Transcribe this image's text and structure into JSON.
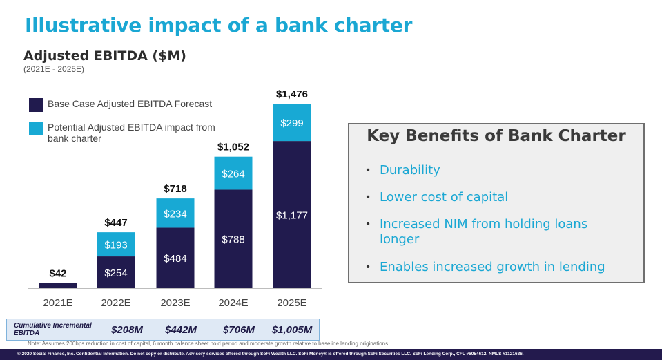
{
  "page": {
    "title": "Illustrative impact of a bank charter",
    "subtitle": "Adjusted EBITDA ($M)",
    "subsubtitle": "(2021E - 2025E)"
  },
  "colors": {
    "base": "#211b4e",
    "impact": "#18a9d4"
  },
  "chart_data": {
    "type": "bar",
    "stacked": true,
    "title": "Adjusted EBITDA ($M)",
    "categories": [
      "2021E",
      "2022E",
      "2023E",
      "2024E",
      "2025E"
    ],
    "series": [
      {
        "name": "Base Case Adjusted EBITDA Forecast",
        "values": [
          42,
          254,
          484,
          788,
          1177
        ],
        "labels": [
          "",
          "$254",
          "$484",
          "$788",
          "$1,177"
        ]
      },
      {
        "name": "Potential Adjusted EBITDA impact from bank charter",
        "values": [
          0,
          193,
          234,
          264,
          299
        ],
        "labels": [
          "",
          "$193",
          "$234",
          "$264",
          "$299"
        ]
      }
    ],
    "totals": [
      "$42",
      "$447",
      "$718",
      "$1,052",
      "$1,476"
    ],
    "ylim": [
      0,
      1476
    ],
    "legend": "top-left"
  },
  "legend": {
    "items": [
      {
        "label": "Base Case Adjusted EBITDA Forecast"
      },
      {
        "label": "Potential Adjusted EBITDA impact from bank charter"
      }
    ]
  },
  "cumulative": {
    "label": "Cumulative Incremental EBITDA",
    "values": [
      "$208M",
      "$442M",
      "$706M",
      "$1,005M"
    ]
  },
  "note": "Note: Assumes 200bps reduction in cost of capital, 6 month balance sheet hold period and moderate growth relative to baseline lending originations",
  "footer": "© 2020 Social Finance, Inc. Confidential Information. Do not copy or distribute. Advisory services offered through SoFi Wealth LLC. SoFi Money® is offered through SoFi Securities LLC. SoFi Lending Corp., CFL #6054612. NMLS #1121636.",
  "benefits": {
    "title": "Key Benefits of Bank Charter",
    "bullet": "•",
    "items": [
      "Durability",
      "Lower cost of capital",
      "Increased NIM from holding loans longer",
      "Enables increased growth in lending"
    ]
  }
}
